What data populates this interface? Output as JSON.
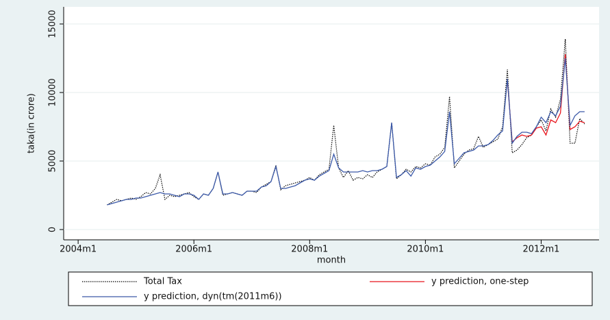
{
  "chart_data": {
    "type": "line",
    "y_label": "taka(in crore)",
    "x_label": "month",
    "x": [
      "2004m7",
      "2004m8",
      "2004m9",
      "2004m10",
      "2004m11",
      "2004m12",
      "2005m1",
      "2005m2",
      "2005m3",
      "2005m4",
      "2005m5",
      "2005m6",
      "2005m7",
      "2005m8",
      "2005m9",
      "2005m10",
      "2005m11",
      "2005m12",
      "2006m1",
      "2006m2",
      "2006m3",
      "2006m4",
      "2006m5",
      "2006m6",
      "2006m7",
      "2006m8",
      "2006m9",
      "2006m10",
      "2006m11",
      "2006m12",
      "2007m1",
      "2007m2",
      "2007m3",
      "2007m4",
      "2007m5",
      "2007m6",
      "2007m7",
      "2007m8",
      "2007m9",
      "2007m10",
      "2007m11",
      "2007m12",
      "2008m1",
      "2008m2",
      "2008m3",
      "2008m4",
      "2008m5",
      "2008m6",
      "2008m7",
      "2008m8",
      "2008m9",
      "2008m10",
      "2008m11",
      "2008m12",
      "2009m1",
      "2009m2",
      "2009m3",
      "2009m4",
      "2009m5",
      "2009m6",
      "2009m7",
      "2009m8",
      "2009m9",
      "2009m10",
      "2009m11",
      "2009m12",
      "2010m1",
      "2010m2",
      "2010m3",
      "2010m4",
      "2010m5",
      "2010m6",
      "2010m7",
      "2010m8",
      "2010m9",
      "2010m10",
      "2010m11",
      "2010m12",
      "2011m1",
      "2011m2",
      "2011m3",
      "2011m4",
      "2011m5",
      "2011m6",
      "2011m7",
      "2011m8",
      "2011m9",
      "2011m10",
      "2011m11",
      "2011m12",
      "2012m1",
      "2012m2",
      "2012m3",
      "2012m4",
      "2012m5",
      "2012m6",
      "2012m7",
      "2012m8",
      "2012m9",
      "2012m10"
    ],
    "series": [
      {
        "name": "Total Tax",
        "color": "#000000",
        "dash": true,
        "values": [
          1800,
          2000,
          2200,
          2100,
          2200,
          2300,
          2200,
          2400,
          2700,
          2600,
          3000,
          4000,
          2200,
          2500,
          2400,
          2500,
          2600,
          2700,
          2400,
          2200,
          2600,
          2500,
          3000,
          4200,
          2500,
          2600,
          2700,
          2600,
          2500,
          2800,
          2800,
          2700,
          3100,
          3300,
          3500,
          4700,
          2900,
          3200,
          3300,
          3400,
          3500,
          3600,
          3800,
          3600,
          4000,
          4200,
          4400,
          7600,
          4500,
          3800,
          4300,
          3600,
          3800,
          3700,
          4000,
          3800,
          4200,
          4400,
          4600,
          7800,
          3700,
          4000,
          4400,
          4200,
          4600,
          4500,
          4800,
          4700,
          5300,
          5500,
          6000,
          9700,
          4500,
          5000,
          5500,
          5800,
          5900,
          6800,
          6000,
          6200,
          6400,
          6600,
          7500,
          11700,
          5600,
          5800,
          6200,
          6700,
          6900,
          7500,
          8000,
          7200,
          8800,
          8200,
          9500,
          13900,
          6300,
          6300,
          8100,
          7700
        ]
      },
      {
        "name": "y prediction, one-step",
        "color": "#e8141c",
        "values": [
          null,
          null,
          null,
          null,
          null,
          null,
          null,
          null,
          null,
          null,
          null,
          null,
          null,
          null,
          null,
          null,
          null,
          null,
          null,
          null,
          null,
          null,
          null,
          null,
          null,
          null,
          null,
          null,
          null,
          null,
          null,
          null,
          null,
          null,
          null,
          null,
          null,
          null,
          null,
          null,
          null,
          null,
          null,
          null,
          null,
          null,
          null,
          null,
          null,
          null,
          null,
          null,
          null,
          null,
          null,
          null,
          null,
          null,
          null,
          null,
          null,
          null,
          null,
          null,
          null,
          null,
          null,
          null,
          null,
          null,
          null,
          null,
          null,
          null,
          null,
          null,
          null,
          null,
          null,
          null,
          null,
          null,
          null,
          10900,
          6400,
          6700,
          6900,
          6800,
          6900,
          7400,
          7500,
          6900,
          8000,
          7800,
          8500,
          12800,
          7300,
          7500,
          7900,
          7800
        ]
      },
      {
        "name": "y prediction, dyn(tm(2011m6))",
        "color": "#3a58a8",
        "values": [
          1800,
          1900,
          2000,
          2100,
          2200,
          2200,
          2300,
          2300,
          2400,
          2500,
          2600,
          2700,
          2600,
          2600,
          2500,
          2400,
          2600,
          2600,
          2500,
          2200,
          2600,
          2500,
          3000,
          4200,
          2600,
          2600,
          2700,
          2600,
          2500,
          2800,
          2800,
          2800,
          3100,
          3200,
          3500,
          4600,
          3000,
          3000,
          3100,
          3200,
          3400,
          3600,
          3700,
          3600,
          3900,
          4100,
          4300,
          5500,
          4500,
          4200,
          4200,
          4200,
          4200,
          4300,
          4200,
          4300,
          4300,
          4400,
          4600,
          7800,
          3800,
          4000,
          4300,
          3900,
          4500,
          4400,
          4600,
          4700,
          5000,
          5300,
          5700,
          8600,
          4800,
          5200,
          5600,
          5700,
          5800,
          6100,
          6100,
          6200,
          6500,
          6900,
          7200,
          11000,
          6300,
          6800,
          7100,
          7100,
          7000,
          7500,
          8200,
          7800,
          8600,
          8300,
          9000,
          12500,
          7600,
          8300,
          8600,
          8600
        ]
      }
    ],
    "xlim": [
      "2003m10",
      "2013m1"
    ],
    "xticks": [
      "2004m1",
      "2006m1",
      "2008m1",
      "2010m1",
      "2012m1"
    ],
    "ylim": [
      -750,
      16250
    ],
    "yticks": [
      0,
      5000,
      10000,
      15000
    ],
    "grid": true
  }
}
